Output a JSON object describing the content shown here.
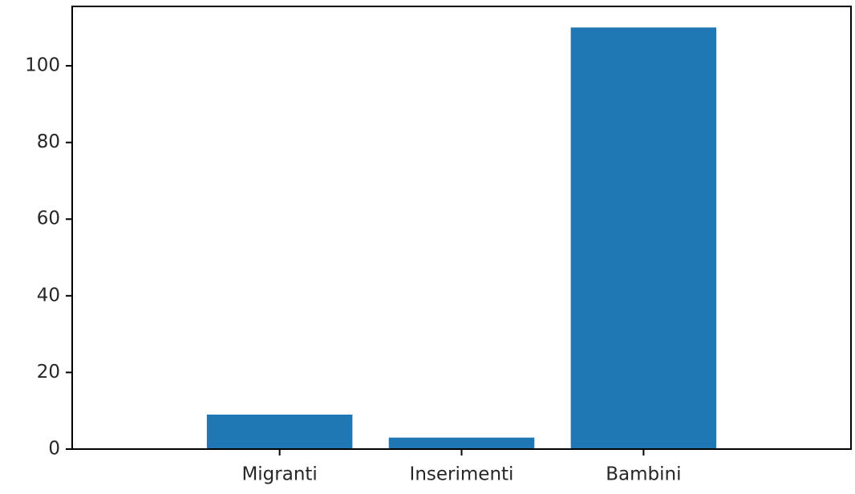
{
  "chart_data": {
    "type": "bar",
    "title": "",
    "xlabel": "",
    "ylabel": "",
    "categories": [
      "Migranti",
      "Inserimenti",
      "Bambini"
    ],
    "values": [
      9,
      3,
      110
    ],
    "ylim": [
      0,
      115.5
    ],
    "yticks": [
      0,
      20,
      40,
      60,
      80,
      100
    ],
    "ytick_labels": [
      "0",
      "20",
      "40",
      "60",
      "80",
      "100"
    ],
    "grid": false,
    "legend": "none",
    "bar_color": "#1f77b4",
    "axis_color": "#000000",
    "text_color": "#262626"
  }
}
